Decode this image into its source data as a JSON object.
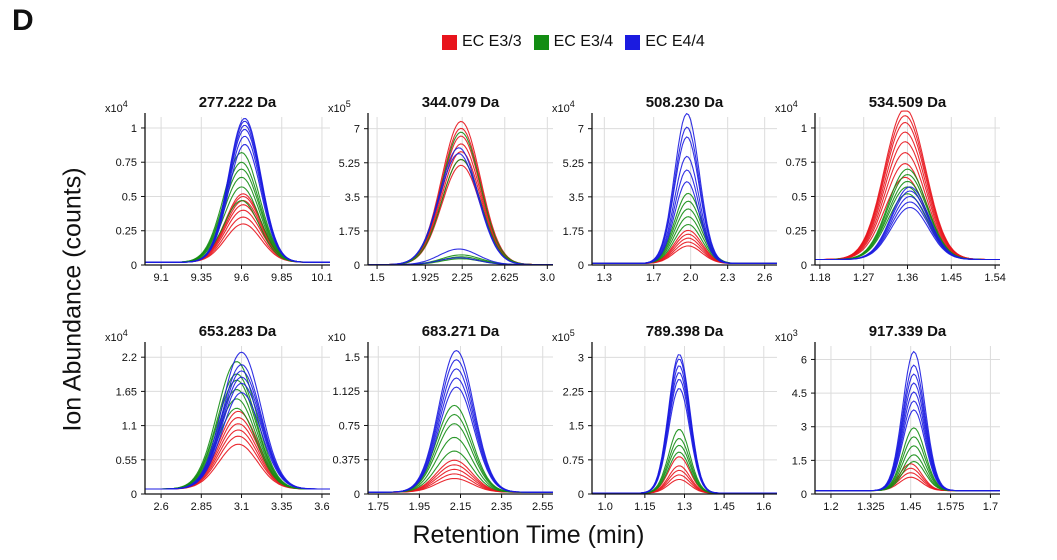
{
  "panel_letter": "D",
  "legend": [
    {
      "label": "EC E3/3",
      "color": "#e8141c"
    },
    {
      "label": "EC E3/4",
      "color": "#138d13"
    },
    {
      "label": "EC E4/4",
      "color": "#1b1be0"
    }
  ],
  "ylabel": "Ion Abundance (counts)",
  "xlabel": "Retention Time (min)",
  "chart_data": [
    {
      "type": "line",
      "title": "277.222 Da",
      "y_multiplier": "x10",
      "y_exponent": "4",
      "xlim": [
        9.0,
        10.15
      ],
      "ylim": [
        0,
        1.08
      ],
      "x_ticks": [
        {
          "v": 9.1,
          "t": "9.1"
        },
        {
          "v": 9.35,
          "t": "9.35"
        },
        {
          "v": 9.6,
          "t": "9.6"
        },
        {
          "v": 9.85,
          "t": "9.85"
        },
        {
          "v": 10.1,
          "t": "10.1"
        }
      ],
      "y_ticks": [
        {
          "v": 0,
          "t": "0"
        },
        {
          "v": 0.25,
          "t": "0.25"
        },
        {
          "v": 0.5,
          "t": "0.5"
        },
        {
          "v": 0.75,
          "t": "0.75"
        },
        {
          "v": 1,
          "t": "1"
        }
      ],
      "series": [
        {
          "group": "EC E3/3",
          "center": 9.61,
          "width": 0.11,
          "baseline": 0.02,
          "peaks": [
            0.28,
            0.33,
            0.38,
            0.42,
            0.45,
            0.48,
            0.5
          ]
        },
        {
          "group": "EC E3/4",
          "center": 9.6,
          "width": 0.11,
          "baseline": 0.02,
          "peaks": [
            0.45,
            0.55,
            0.62,
            0.68,
            0.73,
            0.8
          ]
        },
        {
          "group": "EC E4/4",
          "center": 9.62,
          "width": 0.1,
          "baseline": 0.02,
          "peaks": [
            0.86,
            0.92,
            0.97,
            1.0,
            1.03,
            1.05
          ]
        }
      ]
    },
    {
      "type": "line",
      "title": "344.079 Da",
      "y_multiplier": "x10",
      "y_exponent": "5",
      "xlim": [
        1.42,
        3.05
      ],
      "ylim": [
        0,
        7.6
      ],
      "x_ticks": [
        {
          "v": 1.5,
          "t": "1.5"
        },
        {
          "v": 1.925,
          "t": "1.925"
        },
        {
          "v": 2.25,
          "t": "2.25"
        },
        {
          "v": 2.625,
          "t": "2.625"
        },
        {
          "v": 3.0,
          "t": "3.0"
        }
      ],
      "y_ticks": [
        {
          "v": 0,
          "t": "0"
        },
        {
          "v": 1.75,
          "t": "1.75"
        },
        {
          "v": 3.5,
          "t": "3.5"
        },
        {
          "v": 5.25,
          "t": "5.25"
        },
        {
          "v": 7,
          "t": "7"
        }
      ],
      "series": [
        {
          "group": "EC E3/3",
          "center": 2.24,
          "width": 0.17,
          "baseline": 0.02,
          "peaks": [
            5.1,
            5.4,
            5.8,
            6.2,
            6.6,
            7.0,
            7.35
          ]
        },
        {
          "group": "EC E3/4",
          "center": 2.24,
          "width": 0.17,
          "baseline": 0.02,
          "peaks": [
            0.3,
            0.4,
            0.5,
            5.4,
            6.8
          ]
        },
        {
          "group": "EC E4/4",
          "center": 2.22,
          "width": 0.17,
          "baseline": 0.02,
          "peaks": [
            0.35,
            0.8,
            5.7,
            6.0
          ]
        }
      ]
    },
    {
      "type": "line",
      "title": "508.230 Da",
      "y_multiplier": "x10",
      "y_exponent": "4",
      "xlim": [
        1.2,
        2.7
      ],
      "ylim": [
        0,
        7.6
      ],
      "x_ticks": [
        {
          "v": 1.3,
          "t": "1.3"
        },
        {
          "v": 1.7,
          "t": "1.7"
        },
        {
          "v": 2.0,
          "t": "2.0"
        },
        {
          "v": 2.3,
          "t": "2.3"
        },
        {
          "v": 2.6,
          "t": "2.6"
        }
      ],
      "y_ticks": [
        {
          "v": 0,
          "t": "0"
        },
        {
          "v": 1.75,
          "t": "1.75"
        },
        {
          "v": 3.5,
          "t": "3.5"
        },
        {
          "v": 5.25,
          "t": "5.25"
        },
        {
          "v": 7,
          "t": "7"
        }
      ],
      "series": [
        {
          "group": "EC E3/3",
          "center": 1.98,
          "width": 0.11,
          "baseline": 0.08,
          "peaks": [
            0.9,
            1.1,
            1.3,
            1.5,
            1.7
          ]
        },
        {
          "group": "EC E3/4",
          "center": 1.98,
          "width": 0.11,
          "baseline": 0.08,
          "peaks": [
            2.0,
            2.4,
            2.8,
            3.2,
            3.6
          ]
        },
        {
          "group": "EC E4/4",
          "center": 1.97,
          "width": 0.1,
          "baseline": 0.08,
          "peaks": [
            4.2,
            4.8,
            5.5,
            6.5,
            7.0,
            7.7
          ]
        }
      ]
    },
    {
      "type": "line",
      "title": "534.509 Da",
      "y_multiplier": "x10",
      "y_exponent": "4",
      "xlim": [
        1.17,
        1.55
      ],
      "ylim": [
        0,
        1.08
      ],
      "x_ticks": [
        {
          "v": 1.18,
          "t": "1.18"
        },
        {
          "v": 1.27,
          "t": "1.27"
        },
        {
          "v": 1.36,
          "t": "1.36"
        },
        {
          "v": 1.45,
          "t": "1.45"
        },
        {
          "v": 1.54,
          "t": "1.54"
        }
      ],
      "y_ticks": [
        {
          "v": 0,
          "t": "0"
        },
        {
          "v": 0.25,
          "t": "0.25"
        },
        {
          "v": 0.5,
          "t": "0.5"
        },
        {
          "v": 0.75,
          "t": "0.75"
        },
        {
          "v": 1,
          "t": "1"
        }
      ],
      "series": [
        {
          "group": "EC E3/3",
          "center": 1.355,
          "width": 0.042,
          "baseline": 0.04,
          "peaks": [
            0.6,
            0.7,
            0.78,
            0.86,
            0.93,
            1.0,
            1.05,
            1.1
          ]
        },
        {
          "group": "EC E3/4",
          "center": 1.36,
          "width": 0.04,
          "baseline": 0.04,
          "peaks": [
            0.48,
            0.53,
            0.57,
            0.62,
            0.66
          ]
        },
        {
          "group": "EC E4/4",
          "center": 1.365,
          "width": 0.038,
          "baseline": 0.04,
          "peaks": [
            0.38,
            0.42,
            0.46,
            0.5,
            0.53
          ]
        }
      ]
    },
    {
      "type": "line",
      "title": "653.283 Da",
      "y_multiplier": "x10",
      "y_exponent": "4",
      "xlim": [
        2.5,
        3.65
      ],
      "ylim": [
        0,
        2.38
      ],
      "x_ticks": [
        {
          "v": 2.6,
          "t": "2.6"
        },
        {
          "v": 2.85,
          "t": "2.85"
        },
        {
          "v": 3.1,
          "t": "3.1"
        },
        {
          "v": 3.35,
          "t": "3.35"
        },
        {
          "v": 3.6,
          "t": "3.6"
        }
      ],
      "y_ticks": [
        {
          "v": 0,
          "t": "0"
        },
        {
          "v": 0.55,
          "t": "0.55"
        },
        {
          "v": 1.1,
          "t": "1.1"
        },
        {
          "v": 1.65,
          "t": "1.65"
        },
        {
          "v": 2.2,
          "t": "2.2"
        }
      ],
      "series": [
        {
          "group": "EC E3/3",
          "center": 3.08,
          "width": 0.12,
          "baseline": 0.08,
          "peaks": [
            0.72,
            0.85,
            0.95,
            1.05,
            1.15,
            1.25
          ]
        },
        {
          "group": "EC E3/4",
          "center": 3.07,
          "width": 0.12,
          "baseline": 0.08,
          "peaks": [
            1.3,
            1.45,
            1.6,
            1.75,
            1.85,
            2.05
          ]
        },
        {
          "group": "EC E4/4",
          "center": 3.1,
          "width": 0.12,
          "baseline": 0.08,
          "peaks": [
            1.55,
            1.7,
            1.8,
            1.9,
            2.0,
            2.2
          ]
        }
      ]
    },
    {
      "type": "line",
      "title": "683.271 Da",
      "y_multiplier": "x10",
      "y_exponent": "",
      "xlim": [
        1.7,
        2.6
      ],
      "ylim": [
        0,
        1.62
      ],
      "x_ticks": [
        {
          "v": 1.75,
          "t": "1.75"
        },
        {
          "v": 1.95,
          "t": "1.95"
        },
        {
          "v": 2.15,
          "t": "2.15"
        },
        {
          "v": 2.35,
          "t": "2.35"
        },
        {
          "v": 2.55,
          "t": "2.55"
        }
      ],
      "y_ticks": [
        {
          "v": 0,
          "t": "0"
        },
        {
          "v": 0.375,
          "t": "0.375"
        },
        {
          "v": 0.75,
          "t": "0.75"
        },
        {
          "v": 1.125,
          "t": "1.125"
        },
        {
          "v": 1.5,
          "t": "1.5"
        }
      ],
      "series": [
        {
          "group": "EC E3/3",
          "center": 2.12,
          "width": 0.085,
          "baseline": 0.02,
          "peaks": [
            0.15,
            0.2,
            0.25,
            0.3,
            0.35
          ]
        },
        {
          "group": "EC E3/4",
          "center": 2.12,
          "width": 0.085,
          "baseline": 0.02,
          "peaks": [
            0.45,
            0.6,
            0.75,
            0.85,
            0.95
          ]
        },
        {
          "group": "EC E4/4",
          "center": 2.13,
          "width": 0.085,
          "baseline": 0.02,
          "peaks": [
            1.15,
            1.25,
            1.35,
            1.45,
            1.55
          ]
        }
      ]
    },
    {
      "type": "line",
      "title": "789.398 Da",
      "y_multiplier": "x10",
      "y_exponent": "5",
      "xlim": [
        0.95,
        1.65
      ],
      "ylim": [
        0,
        3.25
      ],
      "x_ticks": [
        {
          "v": 1.0,
          "t": "1.0"
        },
        {
          "v": 1.15,
          "t": "1.15"
        },
        {
          "v": 1.3,
          "t": "1.3"
        },
        {
          "v": 1.45,
          "t": "1.45"
        },
        {
          "v": 1.6,
          "t": "1.6"
        }
      ],
      "y_ticks": [
        {
          "v": 0,
          "t": "0"
        },
        {
          "v": 0.75,
          "t": "0.75"
        },
        {
          "v": 1.5,
          "t": "1.5"
        },
        {
          "v": 2.25,
          "t": "2.25"
        },
        {
          "v": 3,
          "t": "3"
        }
      ],
      "series": [
        {
          "group": "EC E3/3",
          "center": 1.28,
          "width": 0.04,
          "baseline": 0.02,
          "peaks": [
            0.3,
            0.4,
            0.5,
            0.6,
            0.8
          ]
        },
        {
          "group": "EC E3/4",
          "center": 1.28,
          "width": 0.04,
          "baseline": 0.02,
          "peaks": [
            0.9,
            1.05,
            1.2,
            1.4
          ]
        },
        {
          "group": "EC E4/4",
          "center": 1.28,
          "width": 0.04,
          "baseline": 0.02,
          "peaks": [
            2.3,
            2.5,
            2.65,
            2.8,
            2.95,
            3.05
          ]
        }
      ]
    },
    {
      "type": "line",
      "title": "917.339 Da",
      "y_multiplier": "x10",
      "y_exponent": "3",
      "xlim": [
        1.15,
        1.73
      ],
      "ylim": [
        0,
        6.6
      ],
      "x_ticks": [
        {
          "v": 1.2,
          "t": "1.2"
        },
        {
          "v": 1.325,
          "t": "1.325"
        },
        {
          "v": 1.45,
          "t": "1.45"
        },
        {
          "v": 1.575,
          "t": "1.575"
        },
        {
          "v": 1.7,
          "t": "1.7"
        }
      ],
      "y_ticks": [
        {
          "v": 0,
          "t": "0"
        },
        {
          "v": 1.5,
          "t": "1.5"
        },
        {
          "v": 3,
          "t": "3"
        },
        {
          "v": 4.5,
          "t": "4.5"
        },
        {
          "v": 6,
          "t": "6"
        }
      ],
      "series": [
        {
          "group": "EC E3/3",
          "center": 1.45,
          "width": 0.035,
          "baseline": 0.15,
          "peaks": [
            0.6,
            0.8,
            1.0,
            1.2
          ]
        },
        {
          "group": "EC E3/4",
          "center": 1.46,
          "width": 0.035,
          "baseline": 0.15,
          "peaks": [
            1.3,
            1.6,
            2.0,
            2.4,
            2.8
          ]
        },
        {
          "group": "EC E4/4",
          "center": 1.46,
          "width": 0.035,
          "baseline": 0.15,
          "peaks": [
            3.6,
            4.0,
            4.4,
            4.8,
            5.2,
            5.6,
            6.2
          ]
        }
      ]
    }
  ]
}
